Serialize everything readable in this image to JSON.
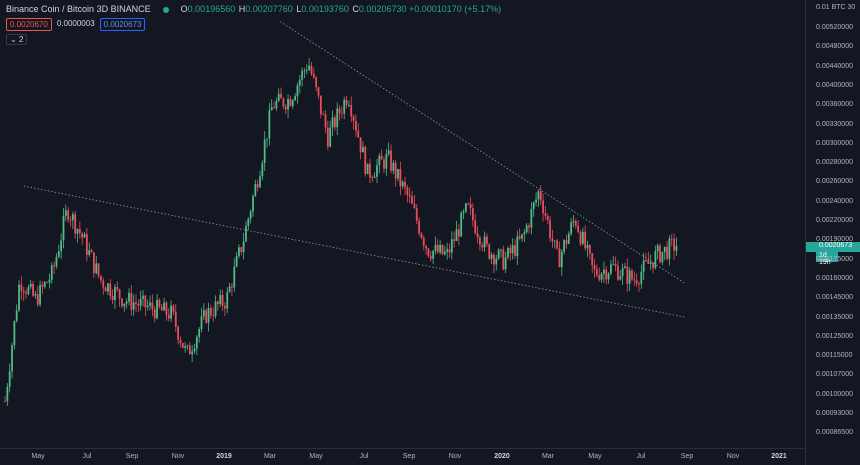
{
  "header": {
    "symbol": "Binance Coin / Bitcoin",
    "interval": "3D",
    "exchange": "BINANCE",
    "open_key": "O",
    "open": "0.00196560",
    "high_key": "H",
    "high": "0.00207760",
    "low_key": "L",
    "low": "0.00193760",
    "close_key": "C",
    "close": "0.00206730",
    "change": "+0.00010170 (+5.17%)",
    "status_icon": "green-dot-icon"
  },
  "quote": {
    "bid": "0.0020670",
    "spread": "0.0000003",
    "ask": "0.0020673"
  },
  "indicators_toggle": "2",
  "colors": {
    "background": "#131722",
    "up": "#26a69a",
    "up_candle": "#53b987",
    "down": "#eb4d5c",
    "trendline": "#9598a1"
  },
  "price_axis": {
    "title": "0.01 BTC 30",
    "ticks": [
      "0.00520000",
      "0.00480000",
      "0.00440000",
      "0.00400000",
      "0.00360000",
      "0.00330000",
      "0.00300000",
      "0.00280000",
      "0.00260000",
      "0.00240000",
      "0.00220000",
      "0.00190000",
      "0.00175000",
      "0.00160000",
      "0.00145000",
      "0.00135000",
      "0.00125000",
      "0.00115000",
      "0.00107000",
      "0.00100000",
      "0.00093000",
      "0.00086500"
    ],
    "last_price": "0.0020673",
    "countdown": "1d 19h"
  },
  "time_axis": {
    "labels": [
      {
        "text": "May",
        "bold": false
      },
      {
        "text": "Jul",
        "bold": false
      },
      {
        "text": "Sep",
        "bold": false
      },
      {
        "text": "Nov",
        "bold": false
      },
      {
        "text": "2019",
        "bold": true
      },
      {
        "text": "Mar",
        "bold": false
      },
      {
        "text": "May",
        "bold": false
      },
      {
        "text": "Jul",
        "bold": false
      },
      {
        "text": "Sep",
        "bold": false
      },
      {
        "text": "Nov",
        "bold": false
      },
      {
        "text": "2020",
        "bold": true
      },
      {
        "text": "Mar",
        "bold": false
      },
      {
        "text": "May",
        "bold": false
      },
      {
        "text": "Jul",
        "bold": false
      },
      {
        "text": "Sep",
        "bold": false
      },
      {
        "text": "Nov",
        "bold": false
      },
      {
        "text": "2021",
        "bold": true
      }
    ]
  },
  "chart_data": {
    "type": "candlestick",
    "scale": "log",
    "grid": false,
    "close_path": [
      {
        "date": "2018-04-01",
        "close": 0.00102
      },
      {
        "date": "2018-04-20",
        "close": 0.00175
      },
      {
        "date": "2018-05-10",
        "close": 0.0016
      },
      {
        "date": "2018-06-01",
        "close": 0.0018
      },
      {
        "date": "2018-06-20",
        "close": 0.0024
      },
      {
        "date": "2018-07-10",
        "close": 0.0021
      },
      {
        "date": "2018-08-01",
        "close": 0.00175
      },
      {
        "date": "2018-09-01",
        "close": 0.0016
      },
      {
        "date": "2018-10-01",
        "close": 0.00155
      },
      {
        "date": "2018-11-01",
        "close": 0.0015
      },
      {
        "date": "2018-11-20",
        "close": 0.00125
      },
      {
        "date": "2018-12-15",
        "close": 0.0015
      },
      {
        "date": "2019-01-10",
        "close": 0.0016
      },
      {
        "date": "2019-02-01",
        "close": 0.0021
      },
      {
        "date": "2019-02-20",
        "close": 0.0028
      },
      {
        "date": "2019-03-10",
        "close": 0.0038
      },
      {
        "date": "2019-04-01",
        "close": 0.0039
      },
      {
        "date": "2019-04-25",
        "close": 0.0046
      },
      {
        "date": "2019-05-20",
        "close": 0.0033
      },
      {
        "date": "2019-06-15",
        "close": 0.004
      },
      {
        "date": "2019-07-10",
        "close": 0.0028
      },
      {
        "date": "2019-08-05",
        "close": 0.003
      },
      {
        "date": "2019-09-01",
        "close": 0.0025
      },
      {
        "date": "2019-09-25",
        "close": 0.002
      },
      {
        "date": "2019-10-20",
        "close": 0.00195
      },
      {
        "date": "2019-11-15",
        "close": 0.0024
      },
      {
        "date": "2019-12-10",
        "close": 0.002
      },
      {
        "date": "2020-01-01",
        "close": 0.0019
      },
      {
        "date": "2020-01-25",
        "close": 0.0021
      },
      {
        "date": "2020-02-15",
        "close": 0.0026
      },
      {
        "date": "2020-03-10",
        "close": 0.0019
      },
      {
        "date": "2020-04-01",
        "close": 0.0023
      },
      {
        "date": "2020-04-25",
        "close": 0.0018
      },
      {
        "date": "2020-05-20",
        "close": 0.00185
      },
      {
        "date": "2020-06-15",
        "close": 0.00175
      },
      {
        "date": "2020-07-15",
        "close": 0.00195
      },
      {
        "date": "2020-08-10",
        "close": 0.00205
      }
    ],
    "trendlines": [
      {
        "name": "upper",
        "from": {
          "date": "2019-03-20",
          "price": 0.0055
        },
        "to": {
          "date": "2020-08-20",
          "price": 0.00172
        }
      },
      {
        "name": "lower",
        "from": {
          "date": "2018-04-25",
          "price": 0.00265
        },
        "to": {
          "date": "2020-08-20",
          "price": 0.00148
        }
      }
    ]
  }
}
